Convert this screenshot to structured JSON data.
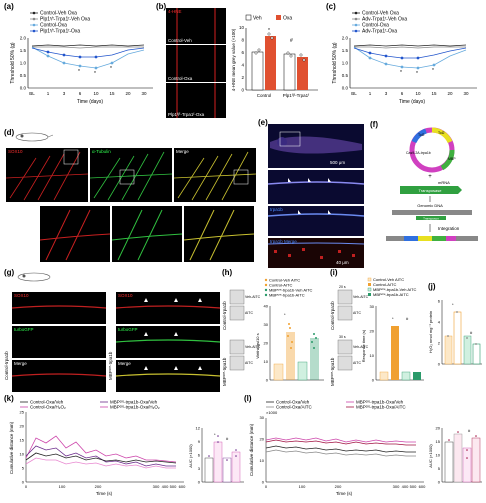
{
  "panels": {
    "a": {
      "label": "(a)"
    },
    "b": {
      "label": "(b)"
    },
    "c": {
      "label": "(c)"
    },
    "d": {
      "label": "(d)"
    },
    "e": {
      "label": "(e)"
    },
    "f": {
      "label": "(f)"
    },
    "g": {
      "label": "(g)"
    },
    "h": {
      "label": "(h)"
    },
    "i": {
      "label": "(i)"
    },
    "j": {
      "label": "(j)"
    },
    "k": {
      "label": "(k)"
    },
    "l": {
      "label": "(l)"
    }
  },
  "panel_a": {
    "legend": [
      "Control-Veh Oxa",
      "Plp1ᶠ/ᶠ-Trpa1ᶠ-Veh Oxa",
      "Control-Oxa",
      "Plp1ᶠ/ᶠ-Trpa1ᶠ-Oxa"
    ],
    "ylabel": "Threshold 50% (g)",
    "xlabel": "Time (days)",
    "xticks": [
      "BL",
      "1",
      "3",
      "6",
      "10",
      "15",
      "20",
      "30"
    ],
    "yticks": [
      "0.0",
      "0.5",
      "1.0",
      "1.5",
      "2.0"
    ]
  },
  "panel_b": {
    "title_img": "4-HNE",
    "img_label_1": "Control-Veh",
    "img_label_2": "Control-Oxa",
    "img_label_3": "Plp1ᶠ/ᶠ-Trpa1ᶠ-Oxa",
    "legend_veh": "Veh",
    "legend_oxa": "Oxa",
    "ylabel": "4-HNE mean grey value (×100)",
    "yticks": [
      "0",
      "2",
      "4",
      "6",
      "8",
      "10"
    ],
    "xticks": [
      "Control",
      "Plp1ᶠ/ᶠ-Trpa1ᶠ"
    ]
  },
  "panel_c": {
    "legend": [
      "Control-Veh Oxa",
      "Adv-Trpa1ᶠ-Veh Oxa",
      "Control-Oxa",
      "Adv-Trpa1ᶠ-Oxa"
    ],
    "ylabel": "Threshold 50% (g)",
    "xlabel": "Time (days)",
    "xticks": [
      "BL",
      "1",
      "3",
      "6",
      "10",
      "15",
      "20",
      "30"
    ],
    "yticks": [
      "0.0",
      "0.5",
      "1.0",
      "1.5",
      "2.0"
    ]
  },
  "panel_d": {
    "label_sox10": "SOX10",
    "label_tubulin": "α-Tubulin",
    "label_merge": "Merge"
  },
  "panel_e": {
    "label_trpa1b": "trpa1b",
    "label_merge": "trpa1b\nMerge",
    "scale_1": "500 μm",
    "scale_2": "40 μm"
  },
  "panel_f": {
    "plasmid_parts": [
      "Tol2",
      "MBP",
      "Cas9-2A-trpa1b",
      "Tol2"
    ],
    "mrna_label": "mRNA",
    "transposase": "Transposase",
    "genomic_dna": "Genomic DNA",
    "transposon": "Transposon",
    "integration": "Integration",
    "plus": "+"
  },
  "panel_g": {
    "label_sox10": "SOX10",
    "label_turbogfp": "turboGFP",
    "label_merge": "Merge",
    "side_left": "Control-trpa1b",
    "side_right": "MBPᶜʳᵉ-trpa1b"
  },
  "panel_h": {
    "legend": [
      "Control-Veh AITC",
      "Control-AITC",
      "MBPᶜʳᵉ-trpa1b-Veh AITC",
      "MBPᶜʳᵉ-trpa1b-AITC"
    ],
    "ylabel": "Writhings/10 s",
    "side_top": "Control-trpa1b",
    "side_bottom": "MBPᶜʳᵉ-trpa1b",
    "img_labels": [
      "Veh-AITC",
      "AITC",
      "Veh-AITC",
      "AITC"
    ],
    "yticks": [
      "0",
      "10",
      "20",
      "30",
      "40"
    ]
  },
  "panel_i": {
    "legend": [
      "Control-Veh AITC",
      "Control-AITC",
      "MBPᶜʳᵉ-trpa1b-Veh AITC",
      "MBPᶜʳᵉ-trpa1b-AITC"
    ],
    "ylabel": "Response time (s)",
    "side_top": "Control-trpa1b",
    "side_bottom": "MBPᶜʳᵉ-trpa1b",
    "img_labels": [
      "Veh-AITC",
      "AITC",
      "Veh-AITC",
      "AITC"
    ],
    "time_labels": [
      "20 s",
      "30 s"
    ],
    "yticks": [
      "0",
      "10",
      "20",
      "30"
    ]
  },
  "panel_j": {
    "ylabel": "H₂O₂ nmol mg⁻¹ protein",
    "yticks": [
      "0",
      "2",
      "4",
      "6"
    ]
  },
  "panel_k": {
    "legend": [
      "Control-Oxa/Veh",
      "Control-Oxa/H₂O₂",
      "MBPᶜʳᵉ-trpa1b-Oxa/Veh",
      "MBPᶜʳᵉ-trpa1b-Oxa/H₂O₂"
    ],
    "ylabel": "Cumulative distance (mm)",
    "xlabel": "Time (s)",
    "xticks": [
      "0",
      "100",
      "200",
      "300",
      "400",
      "500",
      "600"
    ],
    "yticks": [
      "0",
      "5",
      "10",
      "15",
      "20",
      "25"
    ],
    "auc_label": "AUC (×1000)",
    "auc_yticks": [
      "0",
      "3",
      "6",
      "9",
      "12"
    ]
  },
  "panel_l": {
    "legend": [
      "Control-Oxa/Veh",
      "Control-Oxa/AITC",
      "MBPᶜʳᵉ-trpa1b-Oxa/Veh",
      "MBPᶜʳᵉ-trpa1b-Oxa/AITC"
    ],
    "ylabel": "Cumulative distance (mm)",
    "xlabel": "Time (s)",
    "xticks": [
      "0",
      "100",
      "200",
      "300",
      "400",
      "500",
      "600"
    ],
    "yticks": [
      "0",
      "10",
      "20",
      "30"
    ],
    "multiplier": "×1000",
    "auc_label": "AUC (×1000)",
    "auc_yticks": [
      "0",
      "5",
      "10",
      "15",
      "20"
    ]
  },
  "colors": {
    "black": "#222222",
    "grey": "#888888",
    "blue_dark": "#2255cc",
    "blue_light": "#66aadd",
    "orange": "#f0a030",
    "green": "#2a9a6a",
    "pink": "#cc44aa",
    "purple": "#6a2a8a",
    "red_bar": "#e05030"
  }
}
